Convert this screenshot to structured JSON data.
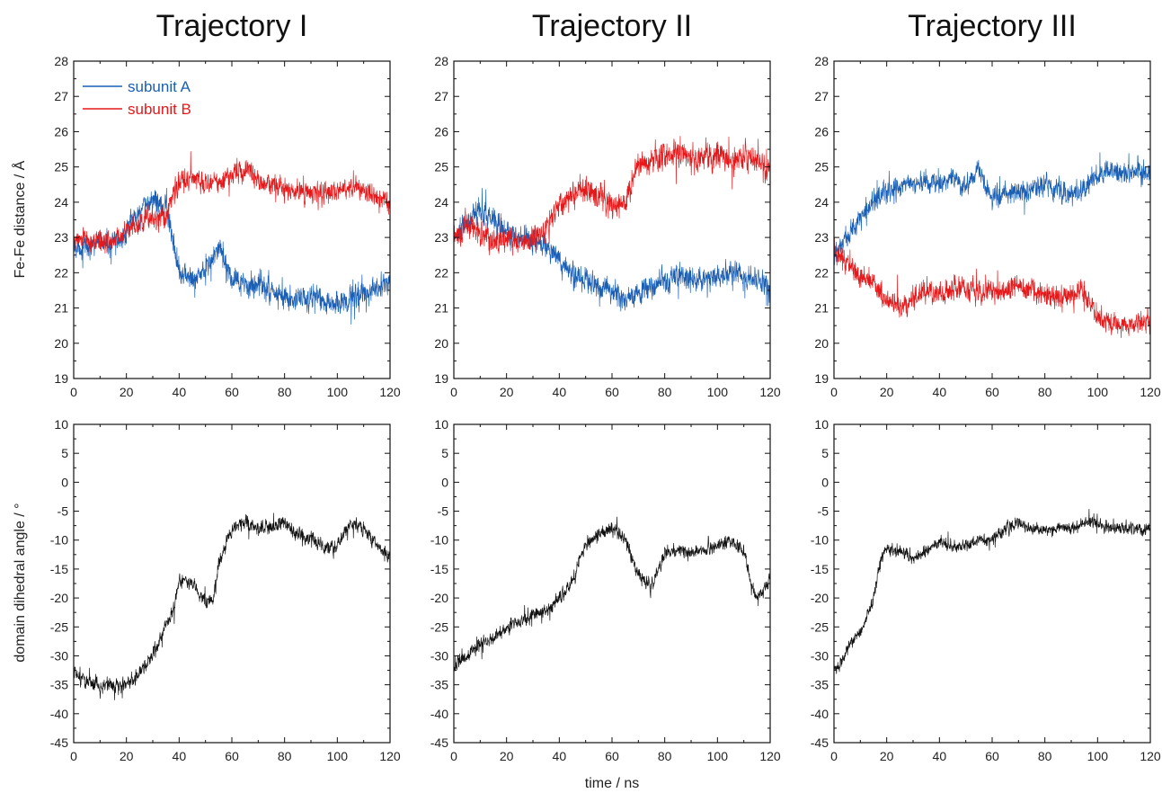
{
  "chart_data": {
    "type": "line",
    "titles": [
      "Trajectory I",
      "Trajectory II",
      "Trajectory III"
    ],
    "xlabel": "time / ns",
    "x_range": [
      0,
      120
    ],
    "x_ticks": [
      0,
      20,
      40,
      60,
      80,
      100,
      120
    ],
    "legend": {
      "placement": "top-left",
      "entries": [
        {
          "name": "subunit A",
          "color": "#1a5fb4"
        },
        {
          "name": "subunit B",
          "color": "#e3191b"
        }
      ]
    },
    "rows": [
      {
        "ylabel": "Fe-Fe distance / Å",
        "ylim": [
          19,
          28
        ],
        "y_ticks": [
          19,
          20,
          21,
          22,
          23,
          24,
          25,
          26,
          27,
          28
        ],
        "panels": [
          {
            "trajectory": "Trajectory I",
            "series": [
              {
                "name": "subunit A",
                "color": "#1a5fb4",
                "x": [
                  0,
                  5,
                  10,
                  15,
                  20,
                  25,
                  30,
                  35,
                  38,
                  40,
                  45,
                  50,
                  55,
                  60,
                  65,
                  70,
                  75,
                  80,
                  85,
                  90,
                  95,
                  100,
                  105,
                  110,
                  115,
                  120
                ],
                "y": [
                  22.8,
                  22.7,
                  22.9,
                  22.8,
                  23.2,
                  23.7,
                  24.1,
                  23.9,
                  22.8,
                  22.1,
                  21.8,
                  22.1,
                  22.7,
                  21.8,
                  21.6,
                  21.7,
                  21.5,
                  21.3,
                  21.2,
                  21.3,
                  21.2,
                  21.1,
                  21.3,
                  21.4,
                  21.5,
                  21.8
                ],
                "noise": 0.55
              },
              {
                "name": "subunit B",
                "color": "#e3191b",
                "x": [
                  0,
                  5,
                  10,
                  15,
                  20,
                  25,
                  30,
                  35,
                  38,
                  40,
                  45,
                  50,
                  55,
                  60,
                  65,
                  70,
                  75,
                  80,
                  85,
                  90,
                  95,
                  100,
                  105,
                  110,
                  115,
                  120
                ],
                "y": [
                  22.9,
                  23.0,
                  22.9,
                  22.9,
                  23.2,
                  23.4,
                  23.5,
                  23.6,
                  24.3,
                  24.6,
                  24.7,
                  24.5,
                  24.6,
                  24.8,
                  24.9,
                  24.6,
                  24.5,
                  24.4,
                  24.3,
                  24.3,
                  24.2,
                  24.3,
                  24.4,
                  24.3,
                  24.2,
                  24.0
                ],
                "noise": 0.5
              }
            ]
          },
          {
            "trajectory": "Trajectory II",
            "series": [
              {
                "name": "subunit A",
                "color": "#1a5fb4",
                "x": [
                  0,
                  5,
                  10,
                  15,
                  20,
                  25,
                  30,
                  35,
                  40,
                  45,
                  50,
                  55,
                  60,
                  65,
                  70,
                  75,
                  80,
                  85,
                  90,
                  95,
                  100,
                  105,
                  110,
                  115,
                  120
                ],
                "y": [
                  23.0,
                  23.4,
                  23.8,
                  23.5,
                  23.1,
                  23.0,
                  22.9,
                  22.8,
                  22.4,
                  21.9,
                  21.8,
                  21.6,
                  21.5,
                  21.3,
                  21.4,
                  21.6,
                  21.8,
                  21.9,
                  21.9,
                  21.8,
                  21.9,
                  22.0,
                  21.9,
                  21.8,
                  21.7
                ],
                "noise": 0.55
              },
              {
                "name": "subunit B",
                "color": "#e3191b",
                "x": [
                  0,
                  5,
                  10,
                  15,
                  20,
                  25,
                  30,
                  35,
                  40,
                  45,
                  50,
                  55,
                  60,
                  65,
                  70,
                  75,
                  80,
                  85,
                  90,
                  95,
                  100,
                  105,
                  110,
                  115,
                  120
                ],
                "y": [
                  23.0,
                  23.3,
                  23.1,
                  22.9,
                  23.0,
                  22.9,
                  23.0,
                  23.2,
                  23.9,
                  24.2,
                  24.4,
                  24.1,
                  23.9,
                  24.0,
                  25.0,
                  25.2,
                  25.3,
                  25.4,
                  25.2,
                  25.3,
                  25.4,
                  25.1,
                  25.3,
                  25.2,
                  25.0
                ],
                "noise": 0.6
              }
            ]
          },
          {
            "trajectory": "Trajectory III",
            "series": [
              {
                "name": "subunit A",
                "color": "#1a5fb4",
                "x": [
                  0,
                  5,
                  10,
                  15,
                  20,
                  25,
                  30,
                  35,
                  40,
                  45,
                  50,
                  55,
                  60,
                  65,
                  70,
                  75,
                  80,
                  85,
                  90,
                  95,
                  100,
                  105,
                  110,
                  115,
                  120
                ],
                "y": [
                  22.6,
                  23.0,
                  23.6,
                  24.0,
                  24.3,
                  24.4,
                  24.5,
                  24.6,
                  24.5,
                  24.6,
                  24.5,
                  24.9,
                  24.1,
                  24.2,
                  24.3,
                  24.4,
                  24.5,
                  24.3,
                  24.2,
                  24.3,
                  24.8,
                  24.9,
                  24.8,
                  24.9,
                  24.8
                ],
                "noise": 0.5
              },
              {
                "name": "subunit B",
                "color": "#e3191b",
                "x": [
                  0,
                  5,
                  10,
                  15,
                  20,
                  25,
                  30,
                  35,
                  40,
                  45,
                  50,
                  55,
                  60,
                  65,
                  70,
                  75,
                  80,
                  85,
                  90,
                  95,
                  100,
                  105,
                  110,
                  115,
                  120
                ],
                "y": [
                  22.6,
                  22.3,
                  22.0,
                  21.7,
                  21.2,
                  21.1,
                  21.3,
                  21.5,
                  21.4,
                  21.6,
                  21.5,
                  21.4,
                  21.4,
                  21.5,
                  21.6,
                  21.5,
                  21.4,
                  21.3,
                  21.4,
                  21.5,
                  20.7,
                  20.6,
                  20.5,
                  20.6,
                  20.5
                ],
                "noise": 0.55
              }
            ]
          }
        ]
      },
      {
        "ylabel": "domain dihedral angle / °",
        "ylim": [
          -45,
          10
        ],
        "y_ticks": [
          -45,
          -40,
          -35,
          -30,
          -25,
          -20,
          -15,
          -10,
          -5,
          0,
          5,
          10
        ],
        "panels": [
          {
            "trajectory": "Trajectory I",
            "series": [
              {
                "name": "dihedral",
                "color": "#111111",
                "x": [
                  0,
                  5,
                  10,
                  15,
                  20,
                  25,
                  30,
                  35,
                  38,
                  40,
                  45,
                  50,
                  53,
                  55,
                  60,
                  65,
                  70,
                  75,
                  80,
                  85,
                  90,
                  95,
                  100,
                  105,
                  110,
                  115,
                  120
                ],
                "y": [
                  -33,
                  -34.5,
                  -35,
                  -35,
                  -35,
                  -33,
                  -30,
                  -25,
                  -22,
                  -17,
                  -17.5,
                  -21,
                  -20,
                  -14,
                  -8,
                  -7,
                  -8,
                  -8,
                  -7,
                  -9,
                  -10,
                  -11,
                  -11,
                  -7,
                  -8,
                  -11,
                  -13
                ],
                "noise": 2.0
              }
            ]
          },
          {
            "trajectory": "Trajectory II",
            "series": [
              {
                "name": "dihedral",
                "color": "#111111",
                "x": [
                  0,
                  5,
                  10,
                  15,
                  20,
                  25,
                  30,
                  35,
                  40,
                  45,
                  50,
                  55,
                  60,
                  65,
                  70,
                  75,
                  80,
                  85,
                  90,
                  95,
                  100,
                  105,
                  110,
                  113,
                  115,
                  120
                ],
                "y": [
                  -32,
                  -30,
                  -28,
                  -27,
                  -25,
                  -24,
                  -23,
                  -22,
                  -20,
                  -17,
                  -11,
                  -9,
                  -8,
                  -10,
                  -16,
                  -18,
                  -12,
                  -12,
                  -12,
                  -12,
                  -11,
                  -10,
                  -12,
                  -18,
                  -20,
                  -17
                ],
                "noise": 1.8
              }
            ]
          },
          {
            "trajectory": "Trajectory III",
            "series": [
              {
                "name": "dihedral",
                "color": "#111111",
                "x": [
                  0,
                  3,
                  6,
                  10,
                  15,
                  18,
                  20,
                  25,
                  30,
                  35,
                  40,
                  45,
                  50,
                  55,
                  60,
                  65,
                  70,
                  75,
                  80,
                  85,
                  90,
                  95,
                  100,
                  105,
                  110,
                  115,
                  120
                ],
                "y": [
                  -32,
                  -31,
                  -28,
                  -26,
                  -20,
                  -13,
                  -12,
                  -12,
                  -13,
                  -12,
                  -10,
                  -11,
                  -11,
                  -10,
                  -10,
                  -8,
                  -7,
                  -8,
                  -8,
                  -8,
                  -8,
                  -7,
                  -7,
                  -8,
                  -8,
                  -8,
                  -8
                ],
                "noise": 1.7
              }
            ]
          }
        ]
      }
    ]
  }
}
